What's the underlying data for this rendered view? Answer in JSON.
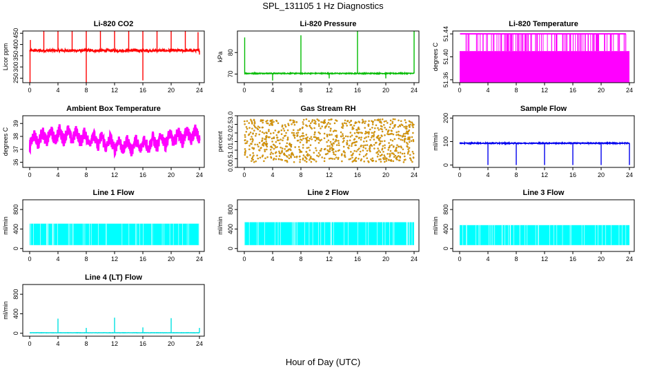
{
  "figure": {
    "title": "SPL_131105  1 Hz Diagnostics",
    "xlabel": "Hour of Day (UTC)"
  },
  "chart_data": [
    {
      "type": "line",
      "title": "Li-820 CO2",
      "xlabel": "",
      "ylabel": "Licor ppm",
      "color": "#ff0000",
      "xlim": [
        0,
        24
      ],
      "ylim": [
        230,
        460
      ],
      "xticks": [
        "0",
        "4",
        "8",
        "12",
        "16",
        "20",
        "24"
      ],
      "yticks": [
        "250",
        "300",
        "350",
        "400",
        "450"
      ],
      "series": [
        {
          "baseline": 373,
          "noise": 6,
          "spikes": [
            [
              0.05,
              230
            ],
            [
              0.1,
              420
            ],
            [
              2,
              460
            ],
            [
              4,
              460
            ],
            [
              6,
              460
            ],
            [
              8,
              460
            ],
            [
              8,
              230
            ],
            [
              10,
              460
            ],
            [
              12,
              460
            ],
            [
              14,
              460
            ],
            [
              16,
              460
            ],
            [
              16,
              240
            ],
            [
              18,
              460
            ],
            [
              20,
              460
            ],
            [
              22,
              460
            ],
            [
              23.8,
              455
            ],
            [
              24,
              355
            ]
          ]
        }
      ]
    },
    {
      "type": "line",
      "title": "Li-820 Pressure",
      "xlabel": "",
      "ylabel": "kPa",
      "color": "#00bb00",
      "xlim": [
        0,
        24
      ],
      "ylim": [
        66,
        90
      ],
      "xticks": [
        "0",
        "4",
        "8",
        "12",
        "16",
        "20",
        "24"
      ],
      "yticks": [
        "70",
        "80"
      ],
      "series": [
        {
          "baseline": 70.3,
          "noise": 0.2,
          "spikes": [
            [
              0.05,
              87
            ],
            [
              4,
              67
            ],
            [
              8,
              88
            ],
            [
              12,
              68
            ],
            [
              16,
              90
            ],
            [
              20,
              68
            ],
            [
              24,
              90
            ]
          ]
        }
      ]
    },
    {
      "type": "bar",
      "title": "Li-820 Temperature",
      "xlabel": "",
      "ylabel": "degrees C",
      "color": "#ff00ff",
      "xlim": [
        0,
        24
      ],
      "ylim": [
        51.355,
        51.445
      ],
      "xticks": [
        "0",
        "4",
        "8",
        "12",
        "16",
        "20",
        "24"
      ],
      "yticks": [
        "51.36",
        "51.40",
        "51.44"
      ],
      "series": [
        {
          "baseline": 51.41,
          "high": 51.44,
          "low": 51.36,
          "fill_to": 51.355
        }
      ]
    },
    {
      "type": "line",
      "title": "Ambient Box Temperature",
      "xlabel": "",
      "ylabel": "degrees C",
      "color": "#ff00ff",
      "xlim": [
        0,
        24
      ],
      "ylim": [
        35.6,
        39.6
      ],
      "xticks": [
        "0",
        "4",
        "8",
        "12",
        "16",
        "20",
        "24"
      ],
      "yticks": [
        "36",
        "37",
        "38",
        "39"
      ],
      "series": [
        {
          "baseline": 37.7,
          "amplitude": 1.0,
          "period_hours": 1.2
        }
      ]
    },
    {
      "type": "scatter",
      "title": "Gas Stream RH",
      "xlabel": "",
      "ylabel": "percent",
      "color": "#ffa500",
      "edge_color": "#8b6b00",
      "xlim": [
        0,
        24
      ],
      "ylim": [
        0,
        3.0
      ],
      "xticks": [
        "0",
        "4",
        "8",
        "12",
        "16",
        "20",
        "24"
      ],
      "yticks": [
        "0.0",
        "0.5",
        "1.0",
        "1.5",
        "2.0",
        "2.5",
        "3.0"
      ],
      "series": [
        {
          "low": 0.3,
          "high": 2.8,
          "center": 1.55
        }
      ]
    },
    {
      "type": "line",
      "title": "Sample Flow",
      "xlabel": "",
      "ylabel": "ml/min",
      "color": "#0000ee",
      "xlim": [
        0,
        24
      ],
      "ylim": [
        -10,
        210
      ],
      "xticks": [
        "0",
        "4",
        "8",
        "12",
        "16",
        "20",
        "24"
      ],
      "yticks": [
        "0",
        "100",
        "200"
      ],
      "series": [
        {
          "baseline": 93,
          "noise": 2,
          "spikes": [
            [
              4,
              0
            ],
            [
              8,
              0
            ],
            [
              12,
              0
            ],
            [
              16,
              0
            ],
            [
              20,
              0
            ],
            [
              24,
              0
            ]
          ]
        }
      ]
    },
    {
      "type": "area",
      "title": "Line 1 Flow",
      "xlabel": "",
      "ylabel": "ml/min",
      "color": "#00ffff",
      "xlim": [
        0,
        24
      ],
      "ylim": [
        -60,
        1000
      ],
      "xticks": [
        "0",
        "4",
        "8",
        "12",
        "16",
        "20",
        "24"
      ],
      "yticks": [
        "0",
        "400",
        "800"
      ],
      "series": [
        {
          "low": 70,
          "high": 510
        }
      ]
    },
    {
      "type": "area",
      "title": "Line 2 Flow",
      "xlabel": "",
      "ylabel": "ml/min",
      "color": "#00ffff",
      "xlim": [
        0,
        24
      ],
      "ylim": [
        -60,
        1000
      ],
      "xticks": [
        "0",
        "4",
        "8",
        "12",
        "16",
        "20",
        "24"
      ],
      "yticks": [
        "0",
        "400",
        "800"
      ],
      "series": [
        {
          "low": 70,
          "high": 540
        }
      ]
    },
    {
      "type": "area",
      "title": "Line 3 Flow",
      "xlabel": "",
      "ylabel": "ml/min",
      "color": "#00ffff",
      "xlim": [
        0,
        24
      ],
      "ylim": [
        -60,
        1000
      ],
      "xticks": [
        "0",
        "4",
        "8",
        "12",
        "16",
        "20",
        "24"
      ],
      "yticks": [
        "0",
        "400",
        "800"
      ],
      "series": [
        {
          "low": 70,
          "high": 480
        }
      ]
    },
    {
      "type": "line",
      "title": "Line 4 (LT) Flow",
      "xlabel": "",
      "ylabel": "ml/min",
      "color": "#00e0e0",
      "xlim": [
        0,
        24
      ],
      "ylim": [
        -60,
        1000
      ],
      "xticks": [
        "0",
        "4",
        "8",
        "12",
        "16",
        "20",
        "24"
      ],
      "yticks": [
        "0",
        "400",
        "800"
      ],
      "series": [
        {
          "baseline": 10,
          "noise": 2,
          "spikes": [
            [
              4,
              300
            ],
            [
              8,
              110
            ],
            [
              12,
              320
            ],
            [
              16,
              120
            ],
            [
              20,
              310
            ],
            [
              24,
              110
            ]
          ]
        }
      ]
    }
  ]
}
